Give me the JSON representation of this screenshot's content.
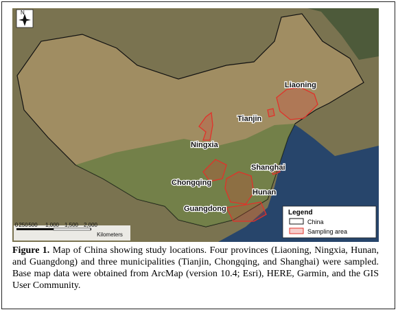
{
  "map": {
    "north_label": "N",
    "place_labels": [
      "Liaoning",
      "Tianjin",
      "Ningxia",
      "Shanghai",
      "Chongqing",
      "Hunan",
      "Guangdong"
    ],
    "legend": {
      "title": "Legend",
      "items": [
        "China",
        "Sampling area"
      ]
    },
    "scale_bar": {
      "ticks": [
        "0",
        "250",
        "500",
        "1,000",
        "1,500",
        "2,000"
      ],
      "unit": "Kilometers"
    }
  },
  "caption": {
    "label": "Figure 1.",
    "text": "Map of China showing study locations. Four provinces (Liaoning, Ningxia, Hunan, and Guangdong) and three municipalities (Tianjin, Chongqing, and Shanghai) were sampled. Base map data were obtained from ArcMap (version 10.4; Esri), HERE, Garmin, and the GIS User Community."
  }
}
